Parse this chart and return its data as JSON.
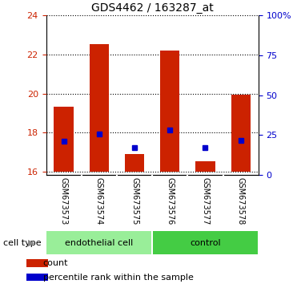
{
  "title": "GDS4462 / 163287_at",
  "samples": [
    "GSM673573",
    "GSM673574",
    "GSM673575",
    "GSM673576",
    "GSM673577",
    "GSM673578"
  ],
  "bar_tops": [
    19.35,
    22.55,
    16.9,
    22.2,
    16.55,
    19.95
  ],
  "bar_bottoms": [
    16.0,
    16.0,
    16.0,
    16.0,
    16.0,
    16.0
  ],
  "percentile_values": [
    17.55,
    17.95,
    17.25,
    18.15,
    17.25,
    17.6
  ],
  "ylim_left": [
    15.85,
    24.0
  ],
  "yticks_left": [
    16,
    18,
    20,
    22,
    24
  ],
  "ylim_right": [
    0,
    100
  ],
  "yticks_right": [
    0,
    25,
    50,
    75,
    100
  ],
  "ytick_labels_right": [
    "0",
    "25",
    "50",
    "75",
    "100%"
  ],
  "bar_color": "#cc2200",
  "percentile_color": "#0000cc",
  "grid_color": "black",
  "left_tick_color": "#cc2200",
  "right_tick_color": "#0000cc",
  "groups": [
    {
      "label": "endothelial cell",
      "indices": [
        0,
        1,
        2
      ],
      "color": "#99ee99"
    },
    {
      "label": "control",
      "indices": [
        3,
        4,
        5
      ],
      "color": "#44cc44"
    }
  ],
  "cell_type_label": "cell type",
  "legend_count_label": "count",
  "legend_pct_label": "percentile rank within the sample",
  "tick_area_bg": "#c8c8c8",
  "tick_area_border": "#ffffff",
  "bar_width": 0.55,
  "title_fontsize": 10,
  "tick_fontsize": 8,
  "sample_fontsize": 7,
  "group_fontsize": 8,
  "legend_fontsize": 8
}
